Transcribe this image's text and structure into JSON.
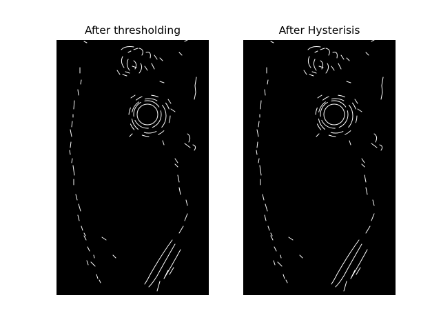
{
  "figure": {
    "panels": [
      {
        "title": "After thresholding"
      },
      {
        "title": "After Hysterisis"
      }
    ]
  },
  "colors": {
    "background": "#ffffff",
    "image_background": "#000000",
    "edge_pixels": "#ffffff"
  }
}
